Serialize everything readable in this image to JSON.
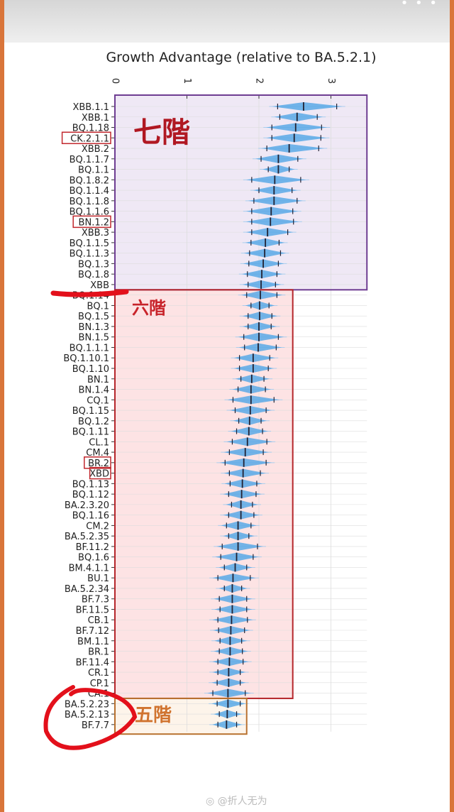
{
  "header": {
    "menu_icon": "more-dots-icon",
    "menu_glyph": "• • •"
  },
  "watermark": "@折人无为",
  "annotations": {
    "tiers": [
      {
        "label": "七階",
        "color": "#b01822",
        "box_color": "#6e3d92",
        "fill": "#efe8f5"
      },
      {
        "label": "六階",
        "color": "#c8232a",
        "box_color": "#b5262b",
        "fill": "#fde3e4"
      },
      {
        "label": "五階",
        "color": "#d0732f",
        "box_color": "#b8712f",
        "fill": "#fdf4ea"
      }
    ],
    "highlighted_labels": [
      "CK.2.1.1",
      "BN.1.2",
      "BR.2",
      "XBD"
    ],
    "circled_labels": [
      "BA.5.2.23",
      "BA.5.2.13",
      "BF.7.7"
    ],
    "struck_label": "BQ.1.14"
  },
  "chart_data": {
    "type": "violin",
    "title": "Growth Advantage (relative to BA.5.2.1)",
    "orientation": "horizontal",
    "xlim": [
      0,
      3.5
    ],
    "xticks": [
      "0",
      "1",
      "2",
      "3"
    ],
    "grid": true,
    "violin_color": "#5aa9e6",
    "categories": [
      "XBB.1.1",
      "XBB.1",
      "BQ.1.18",
      "CK.2.1.1",
      "XBB.2",
      "BQ.1.1.7",
      "BQ.1.1",
      "BQ.1.8.2",
      "BQ.1.1.4",
      "BQ.1.1.8",
      "BQ.1.1.6",
      "BN.1.2",
      "XBB.3",
      "BQ.1.1.5",
      "BQ.1.1.3",
      "BQ.1.3",
      "BQ.1.8",
      "XBB",
      "BQ.1.14",
      "BQ.1",
      "BQ.1.5",
      "BN.1.3",
      "BN.1.5",
      "BQ.1.1.1",
      "BQ.1.10.1",
      "BQ.1.10",
      "BN.1",
      "BN.1.4",
      "CQ.1",
      "BQ.1.15",
      "BQ.1.2",
      "BQ.1.11",
      "CL.1",
      "CM.4",
      "BR.2",
      "XBD",
      "BQ.1.13",
      "BQ.1.12",
      "BA.2.3.20",
      "BQ.1.16",
      "CM.2",
      "BA.5.2.35",
      "BF.11.2",
      "BQ.1.6",
      "BM.4.1.1",
      "BU.1",
      "BA.5.2.34",
      "BF.7.3",
      "BF.11.5",
      "CB.1",
      "BF.7.12",
      "BM.1.1",
      "BR.1",
      "BF.11.4",
      "CR.1",
      "CP.1",
      "CA.1",
      "BA.5.2.23",
      "BA.5.2.13",
      "BF.7.7"
    ],
    "median": [
      2.62,
      2.53,
      2.51,
      2.49,
      2.42,
      2.27,
      2.27,
      2.22,
      2.21,
      2.21,
      2.17,
      2.16,
      2.12,
      2.09,
      2.08,
      2.06,
      2.04,
      2.03,
      2.02,
      2.01,
      2.01,
      2.0,
      2.0,
      1.99,
      1.92,
      1.92,
      1.9,
      1.89,
      1.89,
      1.88,
      1.87,
      1.86,
      1.84,
      1.81,
      1.79,
      1.78,
      1.77,
      1.76,
      1.75,
      1.75,
      1.71,
      1.71,
      1.71,
      1.69,
      1.67,
      1.64,
      1.63,
      1.63,
      1.63,
      1.62,
      1.61,
      1.6,
      1.6,
      1.59,
      1.58,
      1.58,
      1.57,
      1.57,
      1.56,
      1.55
    ],
    "lower": [
      2.26,
      2.29,
      2.18,
      2.18,
      2.11,
      2.03,
      2.13,
      1.9,
      2.0,
      1.93,
      1.9,
      1.9,
      1.9,
      1.89,
      1.87,
      1.86,
      1.84,
      1.85,
      1.83,
      1.89,
      1.85,
      1.85,
      1.79,
      1.8,
      1.73,
      1.73,
      1.75,
      1.71,
      1.64,
      1.67,
      1.72,
      1.69,
      1.63,
      1.59,
      1.53,
      1.59,
      1.6,
      1.58,
      1.62,
      1.58,
      1.55,
      1.58,
      1.49,
      1.47,
      1.52,
      1.43,
      1.52,
      1.45,
      1.46,
      1.43,
      1.44,
      1.46,
      1.45,
      1.43,
      1.43,
      1.42,
      1.36,
      1.42,
      1.45,
      1.43
    ],
    "upper": [
      3.08,
      2.81,
      2.87,
      2.86,
      2.83,
      2.54,
      2.42,
      2.58,
      2.46,
      2.53,
      2.47,
      2.48,
      2.4,
      2.28,
      2.3,
      2.27,
      2.25,
      2.23,
      2.25,
      2.14,
      2.18,
      2.17,
      2.27,
      2.24,
      2.15,
      2.13,
      2.07,
      2.09,
      2.21,
      2.1,
      2.03,
      2.05,
      2.11,
      2.06,
      2.1,
      2.02,
      1.97,
      1.96,
      1.91,
      1.93,
      1.89,
      1.86,
      1.98,
      1.92,
      1.83,
      1.88,
      1.76,
      1.83,
      1.83,
      1.84,
      1.8,
      1.76,
      1.77,
      1.78,
      1.74,
      1.74,
      1.81,
      1.74,
      1.69,
      1.69
    ]
  }
}
